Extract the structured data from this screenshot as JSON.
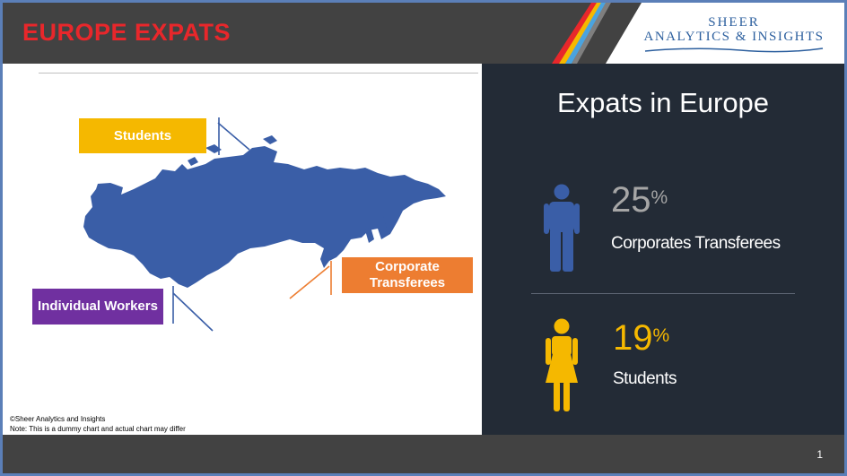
{
  "header": {
    "title": "EUROPE EXPATS",
    "logo_line1": "SHEER",
    "logo_line2": "ANALYTICS & INSIGHTS"
  },
  "map": {
    "callouts": {
      "students": "Students",
      "corporate": "Corporate Transferees",
      "individual": "Individual Workers"
    },
    "colors": {
      "map": "#3a5ea7",
      "students": "#f5b800",
      "corporate": "#ed7d31",
      "individual": "#7030a0"
    }
  },
  "footnote": {
    "copyright": "©Sheer Analytics and Insights",
    "note": "Note: This is a dummy chart and actual chart may differ"
  },
  "panel": {
    "title": "Expats in Europe",
    "stats": [
      {
        "value": "25",
        "unit": "%",
        "label": "Corporates Transferees",
        "icon": "male-person-icon",
        "color": "#3a5ea7"
      },
      {
        "value": "19",
        "unit": "%",
        "label": "Students",
        "icon": "female-person-icon",
        "color": "#f5b800"
      }
    ]
  },
  "footer": {
    "page_number": "1"
  },
  "colors": {
    "header_bg": "#424242",
    "title": "#e8272b",
    "panel_bg": "#232b36"
  }
}
